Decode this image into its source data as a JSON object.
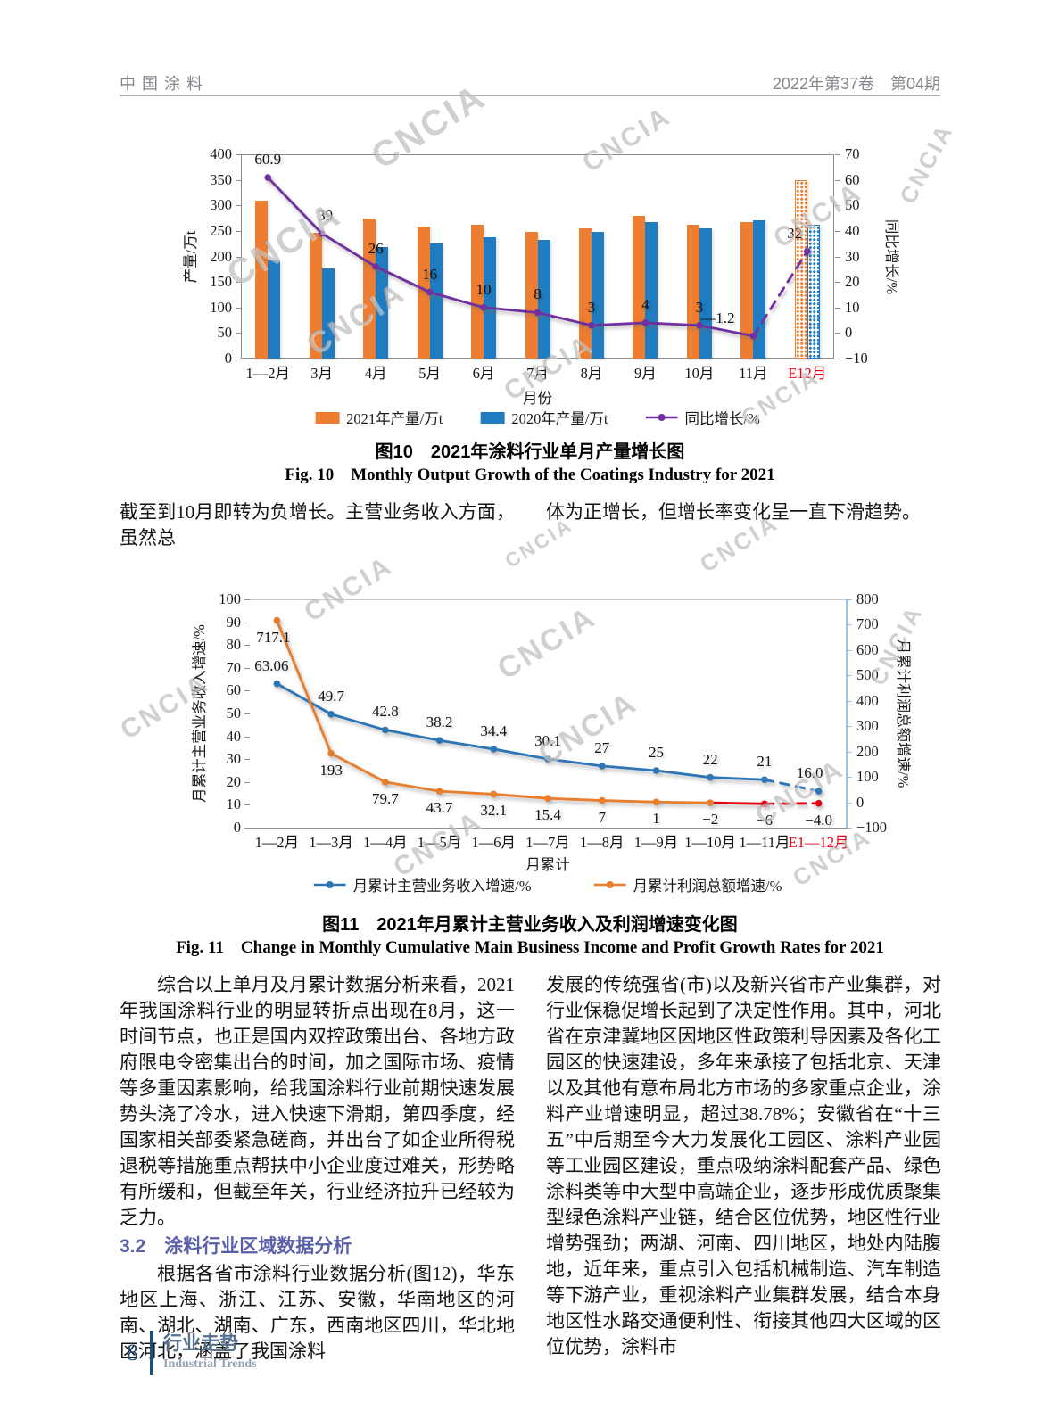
{
  "page": {
    "watermark": "CNCIA",
    "header": {
      "journal": "中国涂料",
      "issue": "2022年第37卷　第04期"
    },
    "footer": {
      "page_number": "8",
      "section_cn": "行业走势",
      "section_en": "Industrial Trends"
    }
  },
  "intro_text": {
    "left": "截至到10月即转为负增长。主营业务收入方面，虽然总",
    "right": "体为正增长，但增长率变化呈一直下滑趋势。"
  },
  "fig10": {
    "caption_cn": "图10　2021年涂料行业单月产量增长图",
    "caption_en": "Fig. 10　Monthly Output Growth of the Coatings Industry for 2021"
  },
  "fig11": {
    "caption_cn": "图11　2021年月累计主营业务收入及利润增速变化图",
    "caption_en": "Fig. 11　Change in Monthly Cumulative Main Business Income and Profit Growth Rates for 2021"
  },
  "body": {
    "left": {
      "p1": "综合以上单月及月累计数据分析来看，2021年我国涂料行业的明显转折点出现在8月，这一时间节点，也正是国内双控政策出台、各地方政府限电令密集出台的时间，加之国际市场、疫情等多重因素影响，给我国涂料行业前期快速发展势头浇了冷水，进入快速下滑期，第四季度，经国家相关部委紧急磋商，并出台了如企业所得税退税等措施重点帮扶中小企业度过难关，形势略有所缓和，但截至年关，行业经济拉升已经较为乏力。",
      "heading": "3.2　涂料行业区域数据分析",
      "p2": "根据各省市涂料行业数据分析(图12)，华东地区上海、浙江、江苏、安徽，华南地区的河南、湖北、湖南、广东，西南地区四川，华北地区河北，涵盖了我国涂料"
    },
    "right": {
      "p1": "发展的传统强省(市)以及新兴省市产业集群，对行业保稳促增长起到了决定性作用。其中，河北省在京津冀地区因地区性政策利导因素及各化工园区的快速建设，多年来承接了包括北京、天津以及其他有意布局北方市场的多家重点企业，涂料产业增速明显，超过38.78%；安徽省在“十三五”中后期至今大力发展化工园区、涂料产业园等工业园区建设，重点吸纳涂料配套产品、绿色涂料类等中大型中高端企业，逐步形成优质聚集型绿色涂料产业链，结合区位优势，地区性行业增势强劲；两湖、河南、四川地区，地处内陆腹地，近年来，重点引入包括机械制造、汽车制造等下游产业，重视涂料产业集群发展，结合本身地区性水路交通便利性、衔接其他四大区域的区位优势，涂料市"
    }
  },
  "chart_data": [
    {
      "id": "fig10",
      "type": "bar",
      "title": "2021年涂料行业单月产量增长图",
      "categories": [
        "1—2月",
        "3月",
        "4月",
        "5月",
        "6月",
        "7月",
        "8月",
        "9月",
        "10月",
        "11月",
        "E12月"
      ],
      "series": [
        {
          "name": "2021年产量/万t",
          "type": "bar",
          "color": "#ED7D31",
          "values": [
            310,
            247,
            275,
            259,
            262,
            248,
            255,
            280,
            262,
            267,
            350
          ],
          "last_bar_patterned": true
        },
        {
          "name": "2020年产量/万t",
          "type": "bar",
          "color": "#1F7CC0",
          "values": [
            192,
            177,
            218,
            225,
            238,
            232,
            248,
            268,
            255,
            270,
            262
          ],
          "last_bar_patterned": true
        },
        {
          "name": "同比增长/%",
          "type": "line",
          "axis": "right",
          "color": "#7030A0",
          "values": [
            60.9,
            39,
            26,
            16,
            10,
            8,
            3,
            4,
            3,
            -1.2,
            32
          ],
          "point_labels": [
            "60.9",
            "39",
            "26",
            "16",
            "10",
            "8",
            "3",
            "4",
            "3",
            "—1.2",
            "32"
          ],
          "label_side": "above",
          "dashed_from_index": 9,
          "label_dx": [
            0,
            4,
            0,
            0,
            0,
            0,
            0,
            0,
            0,
            -40,
            -14
          ]
        }
      ],
      "xlabel": "月份",
      "left_axis": {
        "label": "产量/万t",
        "min": 0,
        "max": 400,
        "step": 50
      },
      "right_axis": {
        "label": "同比增长/%",
        "min": -10,
        "max": 70,
        "step": 10
      },
      "highlight_last_category_color": "#E60012",
      "grid": false,
      "legend_position": "bottom"
    },
    {
      "id": "fig11",
      "type": "line",
      "title": "2021年月累计主营业务收入及利润增速变化图",
      "categories": [
        "1—2月",
        "1—3月",
        "1—4月",
        "1—5月",
        "1—6月",
        "1—7月",
        "1—8月",
        "1—9月",
        "1—10月",
        "1—11月",
        "E1—12月"
      ],
      "series": [
        {
          "name": "月累计主营业务收入增速/%",
          "type": "line",
          "axis": "left",
          "color": "#2E75B6",
          "values": [
            63.06,
            49.7,
            42.8,
            38.2,
            34.4,
            30.1,
            27,
            25,
            22,
            21,
            16.0
          ],
          "point_labels": [
            "63.06",
            "49.7",
            "42.8",
            "38.2",
            "34.4",
            "30.1",
            "27",
            "25",
            "22",
            "21",
            "16.0"
          ],
          "label_side": "above",
          "dashed_from_index": 9,
          "label_dx": [
            -6,
            0,
            0,
            0,
            0,
            0,
            0,
            0,
            0,
            0,
            -10
          ]
        },
        {
          "name": "月累计利润总额增速/%",
          "type": "line",
          "axis": "right",
          "color": "#E87D2B",
          "values": [
            717.1,
            193,
            79.7,
            43.7,
            32.1,
            15.4,
            7,
            1,
            -2,
            -6,
            -4.0
          ],
          "point_labels": [
            "717.1",
            "193",
            "79.7",
            "43.7",
            "32.1",
            "15.4",
            "7",
            "1",
            "−2",
            "−6",
            "−4.0"
          ],
          "label_side": "below",
          "dashed_from_index": 9,
          "red_from_index": 8,
          "red_color": "#E60012",
          "label_dx": [
            -4,
            0,
            0,
            0,
            0,
            0,
            0,
            0,
            0,
            0,
            0
          ]
        }
      ],
      "xlabel": "月累计",
      "left_axis": {
        "label": "月累计主营业务收入增速/%",
        "min": 0,
        "max": 100,
        "step": 10
      },
      "right_axis": {
        "label": "月累计利润总额增速/%",
        "min": -100,
        "max": 800,
        "step": 100
      },
      "highlight_last_category_color": "#E60012",
      "grid": false,
      "legend_position": "bottom"
    }
  ]
}
